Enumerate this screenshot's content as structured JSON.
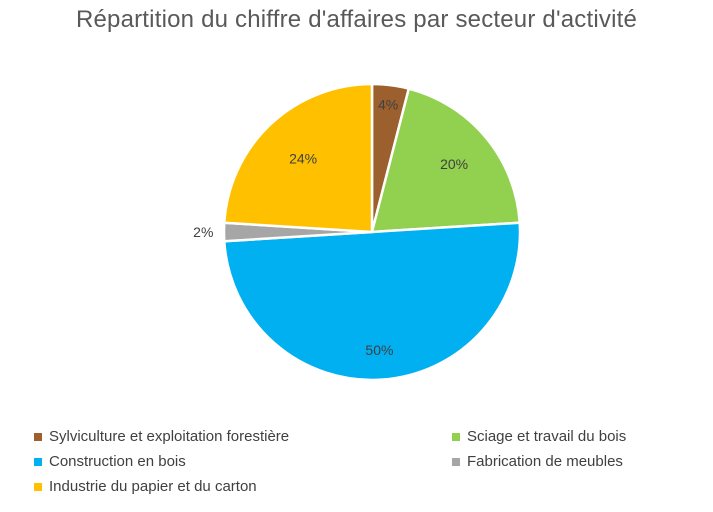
{
  "chart_data": {
    "type": "pie",
    "title": "Répartition du chiffre d'affaires par secteur d'activité",
    "legend_position": "bottom",
    "slices": [
      {
        "name": "Sylviculture et exploitation forestière",
        "value": 4,
        "label": "4%",
        "color": "#9C5F2E"
      },
      {
        "name": "Sciage et travail du bois",
        "value": 20,
        "label": "20%",
        "color": "#92D050"
      },
      {
        "name": "Construction en bois",
        "value": 50,
        "label": "50%",
        "color": "#00B0F0"
      },
      {
        "name": "Fabrication de meubles",
        "value": 2,
        "label": "2%",
        "color": "#A6A6A6"
      },
      {
        "name": "Industrie du papier et du carton",
        "value": 24,
        "label": "24%",
        "color": "#FFC000"
      }
    ]
  }
}
